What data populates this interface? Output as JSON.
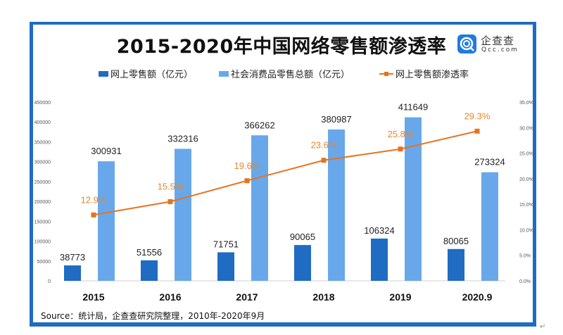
{
  "title": "2015-2020年中国网络零售额渗透率",
  "logo": {
    "cn": "企查查",
    "en": "Qcc.com",
    "icon": "qcc-logo-icon"
  },
  "source": "Source：统计局，企查查研究院整理，2010年-2020年9月",
  "colors": {
    "online": "#1f6cc2",
    "total": "#68a8ea",
    "rate": "#e8731d",
    "frame": "#1f6cc2"
  },
  "chart_data": {
    "type": "bar",
    "title": "2015-2020年中国网络零售额渗透率",
    "categories": [
      "2015",
      "2016",
      "2017",
      "2018",
      "2019",
      "2020.9"
    ],
    "series": [
      {
        "name": "网上零售额（亿元）",
        "type": "bar",
        "axis": "left",
        "values": [
          38773,
          51556,
          71751,
          90065,
          106324,
          80065
        ]
      },
      {
        "name": "社会消费品零售总额（亿元）",
        "type": "bar",
        "axis": "left",
        "values": [
          300931,
          332316,
          366262,
          380987,
          411649,
          273324
        ]
      },
      {
        "name": "网上零售额渗透率",
        "type": "line",
        "axis": "right",
        "values": [
          12.9,
          15.5,
          19.6,
          23.6,
          25.8,
          29.3
        ],
        "labels": [
          "12.9%",
          "15.5%",
          "19.6%",
          "23.6%",
          "25.8%",
          "29.3%"
        ]
      }
    ],
    "y_left": {
      "ylim": [
        0,
        450000
      ],
      "ticks": [
        "0",
        "50000",
        "100000",
        "150000",
        "200000",
        "250000",
        "300000",
        "350000",
        "400000",
        "450000"
      ]
    },
    "y_right": {
      "ylim": [
        0,
        35
      ],
      "ticks": [
        "0.0%",
        "5.0%",
        "10.0%",
        "15.0%",
        "20.0%",
        "25.0%",
        "30.0%",
        "35.0%"
      ]
    },
    "xlabel": "",
    "ylabel": "",
    "grid": false,
    "legend": "top-center"
  }
}
